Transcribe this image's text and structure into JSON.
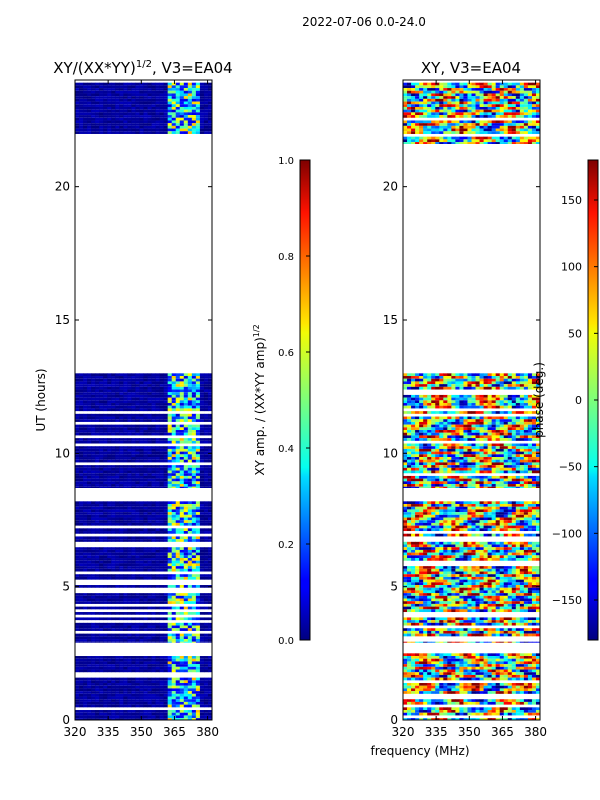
{
  "figure": {
    "suptitle": "2022-07-06 0.0-24.0",
    "shared_xlabel": "frequency (MHz)"
  },
  "chart_data": [
    {
      "type": "heatmap",
      "title": "XY/(XX*YY)^1/2, V3=EA04",
      "title_main": "XY/(XX*YY)",
      "title_exp": "1/2",
      "title_suffix": ", V3=EA04",
      "xlabel": "frequency (MHz)",
      "ylabel": "UT (hours)",
      "xlim": [
        320,
        382
      ],
      "ylim": [
        0,
        24
      ],
      "xticks": [
        320,
        335,
        350,
        365,
        380
      ],
      "yticks": [
        0,
        5,
        10,
        15,
        20
      ],
      "data_segments_hours": [
        [
          0.0,
          2.5
        ],
        [
          2.9,
          8.2
        ],
        [
          8.7,
          13.0
        ],
        [
          21.6,
          23.9
        ]
      ],
      "bright_band_mhz": [
        362,
        377
      ],
      "colorbar": {
        "label": "XY amp. / (XX*YY amp)^1/2",
        "label_main": "XY amp. / (XX*YY amp)",
        "label_exp": "1/2",
        "range": [
          0.0,
          1.0
        ],
        "ticks": [
          0.0,
          0.2,
          0.4,
          0.6,
          0.8,
          1.0
        ],
        "tick_labels": [
          "0.0",
          "0.2",
          "0.4",
          "0.6",
          "0.8",
          "1.0"
        ]
      }
    },
    {
      "type": "heatmap",
      "title": "XY, V3=EA04",
      "xlabel": "frequency (MHz)",
      "ylabel": "",
      "xlim": [
        320,
        382
      ],
      "ylim": [
        0,
        24
      ],
      "xticks": [
        320,
        335,
        350,
        365,
        380
      ],
      "yticks": [
        0,
        5,
        10,
        15,
        20
      ],
      "data_segments_hours": [
        [
          0.0,
          2.5
        ],
        [
          2.9,
          8.2
        ],
        [
          8.7,
          13.0
        ],
        [
          21.6,
          23.9
        ]
      ],
      "colorbar": {
        "label": "phase (deg.)",
        "range": [
          -180,
          180
        ],
        "ticks": [
          -150,
          -100,
          -50,
          0,
          50,
          100,
          150
        ],
        "tick_labels": [
          "−150",
          "−100",
          "−50",
          "0",
          "50",
          "100",
          "150"
        ]
      }
    }
  ]
}
